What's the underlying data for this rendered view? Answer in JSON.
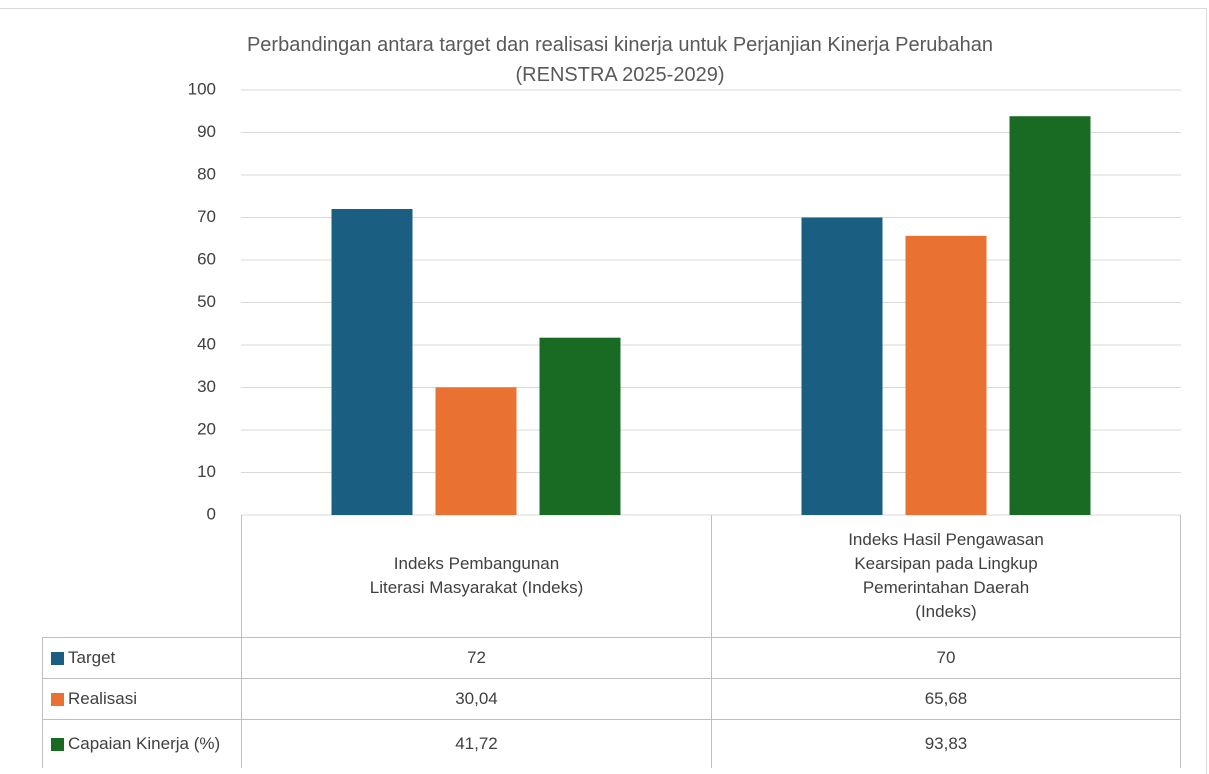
{
  "chart_data": {
    "type": "bar",
    "title": "Perbandingan antara target dan realisasi kinerja untuk Perjanjian Kinerja Perubahan (RENSTRA 2025-2029)",
    "categories": [
      "Indeks Pembangunan Literasi Masyarakat (Indeks)",
      "Indeks Hasil Pengawasan Kearsipan pada Lingkup Pemerintahan Daerah (Indeks)"
    ],
    "series": [
      {
        "name": "Target",
        "color": "#1a5f82",
        "values": [
          72,
          70
        ]
      },
      {
        "name": "Realisasi",
        "color": "#e97132",
        "values": [
          30.04,
          65.68
        ],
        "value_labels": [
          "30,04",
          "65,68"
        ]
      },
      {
        "name": "Capaian Kinerja (%)",
        "color": "#196b24",
        "values": [
          41.72,
          93.83
        ],
        "value_labels": [
          "41,72",
          "93,83"
        ]
      }
    ],
    "ylim": [
      0,
      100
    ],
    "yticks": [
      0,
      10,
      20,
      30,
      40,
      50,
      60,
      70,
      80,
      90,
      100
    ],
    "grid": true,
    "data_table": true
  }
}
